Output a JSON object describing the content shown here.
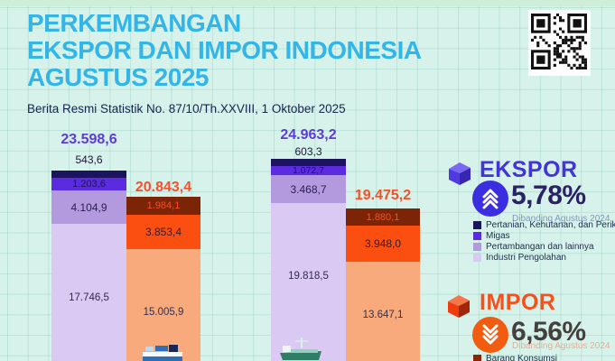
{
  "header": {
    "title_lines": [
      "PERKEMBANGAN",
      "EKSPOR DAN IMPOR INDONESIA",
      "AGUSTUS 2025"
    ],
    "subtitle": "Berita Resmi Statistik No. 87/10/Th.XXVIII, 1 Oktober 2025"
  },
  "chart_data": {
    "type": "bar",
    "stacked": true,
    "groups": [
      {
        "ekspor": {
          "total_label": "23.598,6",
          "total_value": 23598.6,
          "segments": [
            {
              "label": "543,6",
              "value": 543.6
            },
            {
              "label": "1.203,6",
              "value": 1203.6
            },
            {
              "label": "4.104,9",
              "value": 4104.9
            },
            {
              "label": "17.746,5",
              "value": 17746.5
            }
          ]
        },
        "impor": {
          "total_label": "20.843,4",
          "total_value": 20843.4,
          "segments": [
            {
              "label": "1.984,1",
              "value": 1984.1
            },
            {
              "label": "3.853,4",
              "value": 3853.4
            },
            {
              "label": "15.005,9",
              "value": 15005.9
            }
          ]
        }
      },
      {
        "ekspor": {
          "total_label": "24.963,2",
          "total_value": 24963.2,
          "segments": [
            {
              "label": "603,3",
              "value": 603.3
            },
            {
              "label": "1.072,7",
              "value": 1072.7
            },
            {
              "label": "3.468,7",
              "value": 3468.7
            },
            {
              "label": "19.818,5",
              "value": 19818.5
            }
          ]
        },
        "impor": {
          "total_label": "19.475,2",
          "total_value": 19475.2,
          "segments": [
            {
              "label": "1.880,1",
              "value": 1880.1
            },
            {
              "label": "3.948,0",
              "value": 3948.0
            },
            {
              "label": "13.647,1",
              "value": 13647.1
            }
          ]
        }
      }
    ],
    "ekspor_stack_order_top_to_bottom": [
      "Pertanian, Kehutanan, dan Perikanan",
      "Migas",
      "Pertambangan dan lainnya",
      "Industri Pengolahan"
    ],
    "impor_stack_categories_visible": [
      "Barang Konsumsi"
    ]
  },
  "ekspor_panel": {
    "title": "EKSPOR",
    "percent": "5,78%",
    "direction": "up",
    "compare": "Dibanding Agustus 2024",
    "legend": [
      {
        "label": "Pertanian, Kehutanan, dan Perikanan",
        "color": "#1d1460"
      },
      {
        "label": "Migas",
        "color": "#5b2be0"
      },
      {
        "label": "Pertambangan dan lainnya",
        "color": "#b39ade"
      },
      {
        "label": "Industri Pengolahan",
        "color": "#dac9f2"
      }
    ]
  },
  "impor_panel": {
    "title": "IMPOR",
    "percent": "6,56%",
    "direction": "down",
    "compare": "Dibanding Agustus 2024",
    "legend": [
      {
        "label": "Barang Konsumsi",
        "color": "#8b2506"
      }
    ]
  },
  "palette": {
    "background": "#d7f2ea",
    "title_cyan": "#33b5e8",
    "subtitle_navy": "#16234d",
    "ekspor_accent": "#4234d8",
    "impor_accent": "#f4511c",
    "ekspor_total": "#5d3bd5",
    "impor_total": "#f4502a",
    "seg_navy": "#1d1460",
    "seg_violet": "#5b2be0",
    "seg_medium_purple": "#b39ade",
    "seg_light_purple": "#dac9f2",
    "seg_brown": "#7c2406",
    "seg_orange": "#fb4f12",
    "seg_peach": "#f9aa7c"
  }
}
